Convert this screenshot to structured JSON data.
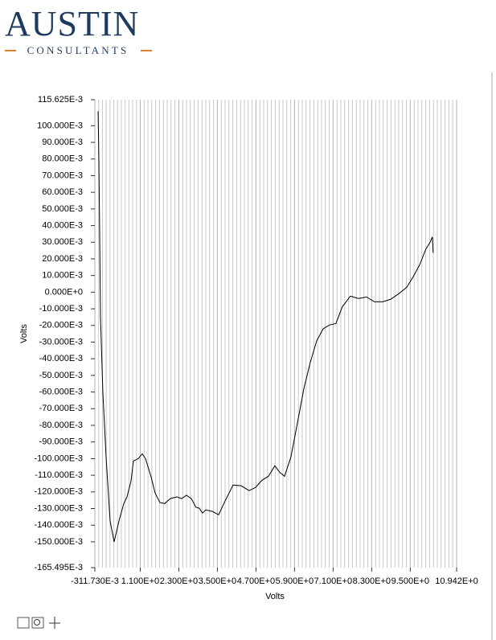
{
  "header": {
    "logo_title": "AUSTIN",
    "logo_subtitle": "CONSULTANTS"
  },
  "chart_data": {
    "type": "line",
    "x_label": "Volts",
    "y_label": "Volts",
    "color": "#000000",
    "grid": true,
    "xlim": [
      -0.31173,
      10.942
    ],
    "ylim": [
      -0.165495,
      0.115625
    ],
    "xticks": [
      {
        "value": -0.31173,
        "label": "-311.730E-3"
      },
      {
        "value": 1.1,
        "label": "1.100E+0"
      },
      {
        "value": 2.3,
        "label": "2.300E+0"
      },
      {
        "value": 3.5,
        "label": "3.500E+0"
      },
      {
        "value": 4.7,
        "label": "4.700E+0"
      },
      {
        "value": 5.9,
        "label": "5.900E+0"
      },
      {
        "value": 7.1,
        "label": "7.100E+0"
      },
      {
        "value": 8.3,
        "label": "8.300E+0"
      },
      {
        "value": 9.5,
        "label": "9.500E+0"
      },
      {
        "value": 10.942,
        "label": "10.942E+0"
      }
    ],
    "yticks": [
      {
        "value": 0.115625,
        "label": "115.625E-3"
      },
      {
        "value": 0.1,
        "label": "100.000E-3"
      },
      {
        "value": 0.09,
        "label": "90.000E-3"
      },
      {
        "value": 0.08,
        "label": "80.000E-3"
      },
      {
        "value": 0.07,
        "label": "70.000E-3"
      },
      {
        "value": 0.06,
        "label": "60.000E-3"
      },
      {
        "value": 0.05,
        "label": "50.000E-3"
      },
      {
        "value": 0.04,
        "label": "40.000E-3"
      },
      {
        "value": 0.03,
        "label": "30.000E-3"
      },
      {
        "value": 0.02,
        "label": "20.000E-3"
      },
      {
        "value": 0.01,
        "label": "10.000E-3"
      },
      {
        "value": 0,
        "label": "0.000E+0"
      },
      {
        "value": -0.01,
        "label": "-10.000E-3"
      },
      {
        "value": -0.02,
        "label": "-20.000E-3"
      },
      {
        "value": -0.03,
        "label": "-30.000E-3"
      },
      {
        "value": -0.04,
        "label": "-40.000E-3"
      },
      {
        "value": -0.05,
        "label": "-50.000E-3"
      },
      {
        "value": -0.06,
        "label": "-60.000E-3"
      },
      {
        "value": -0.07,
        "label": "-70.000E-3"
      },
      {
        "value": -0.08,
        "label": "-80.000E-3"
      },
      {
        "value": -0.09,
        "label": "-90.000E-3"
      },
      {
        "value": -0.1,
        "label": "-100.000E-3"
      },
      {
        "value": -0.11,
        "label": "-110.000E-3"
      },
      {
        "value": -0.12,
        "label": "-120.000E-3"
      },
      {
        "value": -0.13,
        "label": "-130.000E-3"
      },
      {
        "value": -0.14,
        "label": "-140.000E-3"
      },
      {
        "value": -0.15,
        "label": "-150.000E-3"
      },
      {
        "value": -0.165495,
        "label": "-165.495E-3"
      }
    ],
    "x": [
      -0.21,
      -0.187,
      -0.162,
      -0.137,
      -0.062,
      0.038,
      0.163,
      0.288,
      0.438,
      0.588,
      0.688,
      0.813,
      0.888,
      1.038,
      1.163,
      1.263,
      1.438,
      1.563,
      1.713,
      1.863,
      2.038,
      2.238,
      2.388,
      2.538,
      2.688,
      2.838,
      2.938,
      3.038,
      3.138,
      3.338,
      3.538,
      3.738,
      3.988,
      4.238,
      4.488,
      4.688,
      4.888,
      5.088,
      5.288,
      5.438,
      5.588,
      5.788,
      5.988,
      6.188,
      6.388,
      6.588,
      6.788,
      6.988,
      7.188,
      7.388,
      7.638,
      7.888,
      8.138,
      8.388,
      8.638,
      8.888,
      9.138,
      9.388,
      9.588,
      9.788,
      9.988,
      10.113,
      10.188,
      10.213
    ],
    "values": [
      0.1087,
      0.0788,
      0.0356,
      -0.0149,
      -0.0606,
      -0.099,
      -0.1375,
      -0.15,
      -0.1375,
      -0.127,
      -0.123,
      -0.1135,
      -0.1014,
      -0.1,
      -0.0971,
      -0.1,
      -0.111,
      -0.1207,
      -0.1264,
      -0.127,
      -0.124,
      -0.123,
      -0.124,
      -0.122,
      -0.124,
      -0.1293,
      -0.1298,
      -0.1327,
      -0.1308,
      -0.1317,
      -0.1337,
      -0.1255,
      -0.1159,
      -0.1163,
      -0.1192,
      -0.1173,
      -0.113,
      -0.1106,
      -0.1043,
      -0.1082,
      -0.1106,
      -0.099,
      -0.0788,
      -0.0582,
      -0.0423,
      -0.0293,
      -0.0221,
      -0.0197,
      -0.0188,
      -0.0087,
      -0.0024,
      -0.0038,
      -0.0029,
      -0.0058,
      -0.0058,
      -0.0043,
      -0.001,
      0.0029,
      0.0091,
      0.0163,
      0.026,
      0.0298,
      0.0332,
      0.0236
    ]
  }
}
